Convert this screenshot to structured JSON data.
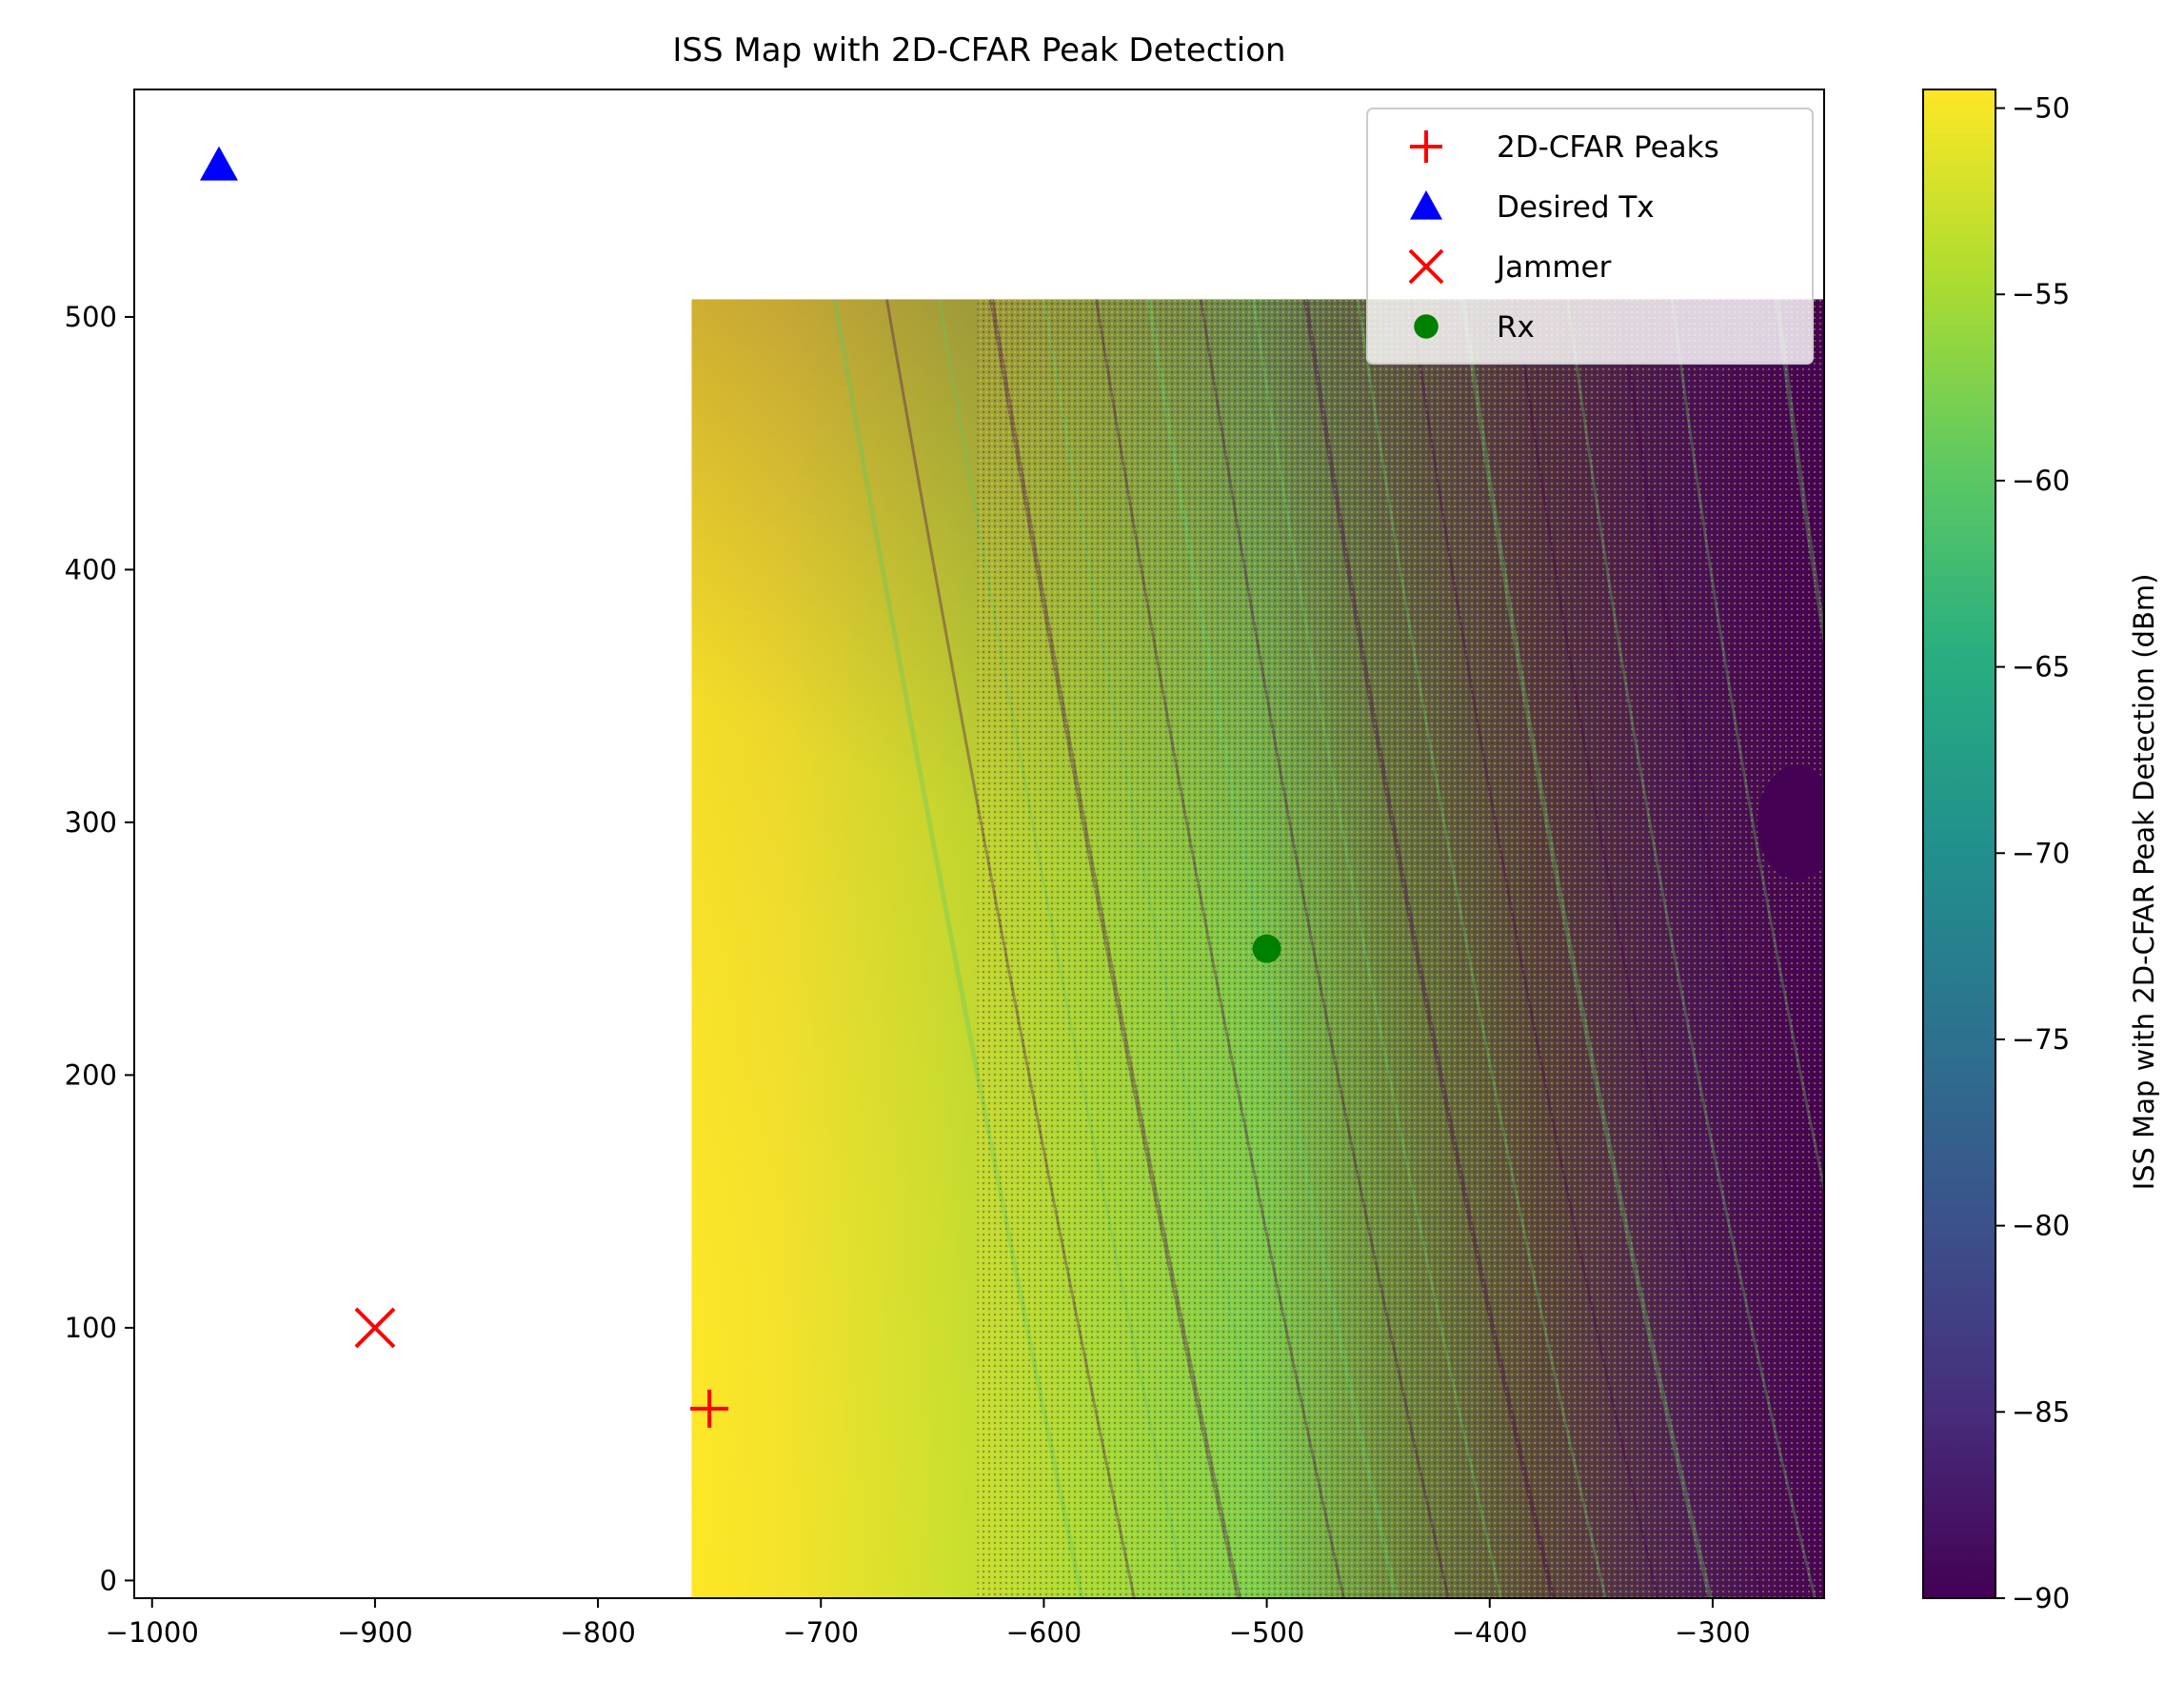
{
  "chart_data": {
    "type": "heatmap",
    "title": "ISS Map with 2D-CFAR Peak Detection",
    "xlabel": "",
    "ylabel": "",
    "xlim": [
      -1008,
      -250
    ],
    "ylim": [
      -7,
      590
    ],
    "x_ticks": [
      -1000,
      -900,
      -800,
      -700,
      -600,
      -500,
      -400,
      -300
    ],
    "y_ticks": [
      0,
      100,
      200,
      300,
      400,
      500
    ],
    "x_tick_labels": [
      "−1000",
      "−900",
      "−800",
      "−700",
      "−600",
      "−500",
      "−400",
      "−300"
    ],
    "y_tick_labels": [
      "0",
      "100",
      "200",
      "300",
      "400",
      "500"
    ],
    "heatmap_extent": {
      "x": [
        -758,
        -250
      ],
      "y": [
        -7,
        507
      ]
    },
    "colormap": "viridis",
    "colorbar": {
      "label": "ISS Map with 2D-CFAR Peak Detection (dBm)",
      "range": [
        -90,
        -49.5
      ],
      "ticks": [
        -50,
        -55,
        -60,
        -65,
        -70,
        -75,
        -80,
        -85,
        -90
      ],
      "tick_labels": [
        "−50",
        "−55",
        "−60",
        "−65",
        "−70",
        "−75",
        "−80",
        "−85",
        "−90"
      ]
    },
    "legend_position": "upper-right",
    "series": [
      {
        "name": "2D-CFAR Peaks",
        "marker": "plus",
        "color": "#ff0000",
        "points": [
          [
            -750,
            68
          ]
        ]
      },
      {
        "name": "Desired Tx",
        "marker": "triangle",
        "color": "#0000ff",
        "points": [
          [
            -970,
            560
          ]
        ]
      },
      {
        "name": "Jammer",
        "marker": "x",
        "color": "#ff0000",
        "points": [
          [
            -900,
            100
          ]
        ]
      },
      {
        "name": "Rx",
        "marker": "circle",
        "color": "#008000",
        "points": [
          [
            -500,
            250
          ]
        ]
      }
    ]
  }
}
